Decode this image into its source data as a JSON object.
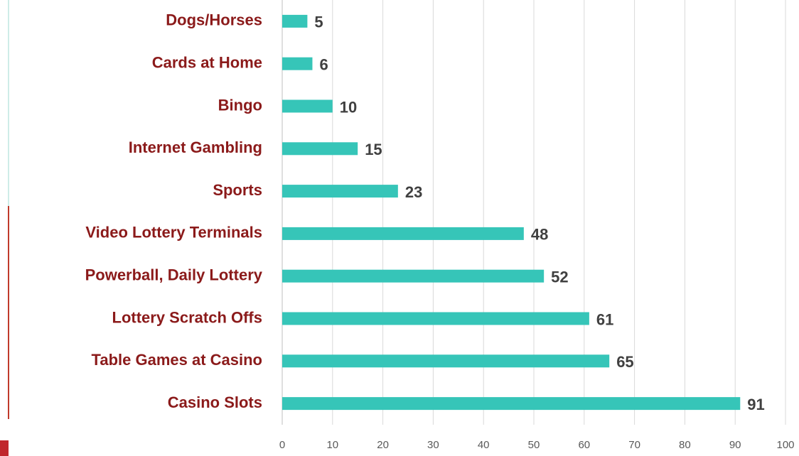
{
  "chart_data": {
    "type": "bar",
    "orientation": "horizontal",
    "categories": [
      "Dogs/Horses",
      "Cards at Home",
      "Bingo",
      "Internet Gambling",
      "Sports",
      "Video Lottery Terminals",
      "Powerball, Daily Lottery",
      "Lottery Scratch Offs",
      "Table Games at Casino",
      "Casino Slots"
    ],
    "values": [
      5,
      6,
      10,
      15,
      23,
      48,
      52,
      61,
      65,
      91
    ],
    "color": "#36c5b8",
    "xlim": [
      0,
      100
    ],
    "xticks": [
      0,
      10,
      20,
      30,
      40,
      50,
      60,
      70,
      80,
      90,
      100
    ],
    "grid": true
  }
}
